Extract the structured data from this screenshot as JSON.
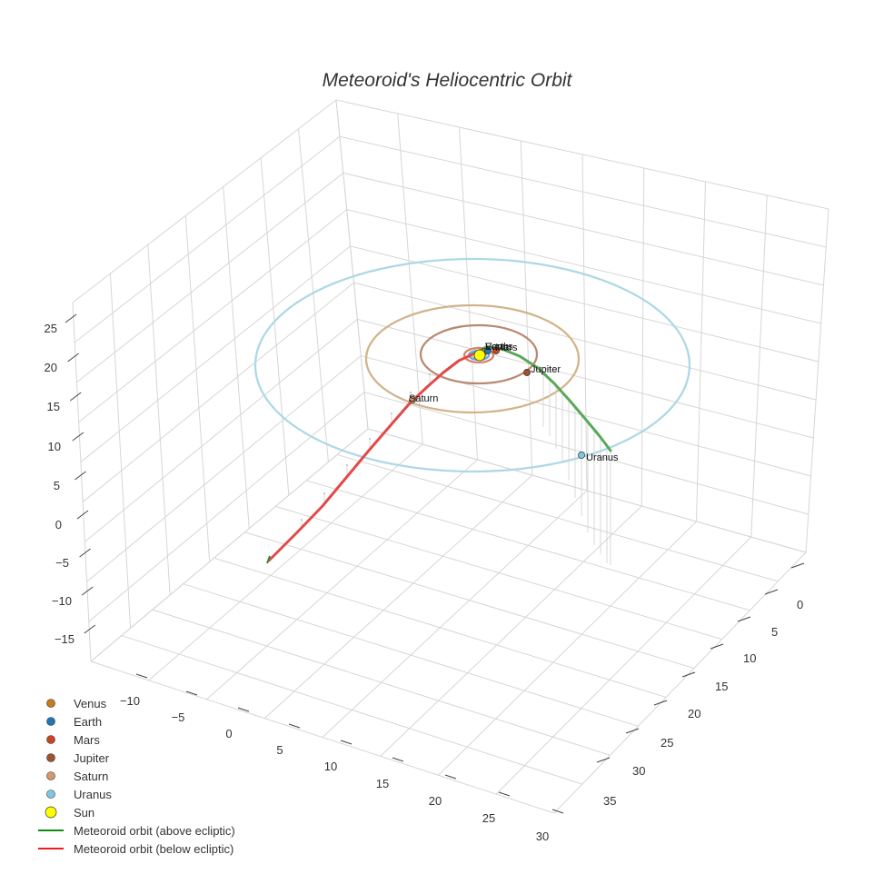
{
  "chart_data": {
    "type": "scatter3d",
    "title": "Meteoroid's Heliocentric Orbit",
    "axes": {
      "x": {
        "ticks": [
          -10,
          -5,
          0,
          5,
          10,
          15,
          20,
          25,
          30
        ],
        "tick_labels": [
          "−10",
          "−5",
          "0",
          "5",
          "10",
          "15",
          "20",
          "25",
          "30"
        ]
      },
      "y": {
        "ticks": [
          0,
          5,
          10,
          15,
          20,
          25,
          30,
          35
        ],
        "tick_labels": [
          "0",
          "5",
          "10",
          "15",
          "20",
          "25",
          "30",
          "35"
        ]
      },
      "z": {
        "ticks": [
          25,
          20,
          15,
          10,
          5,
          0,
          -5,
          -10,
          -15
        ],
        "tick_labels": [
          "25",
          "20",
          "15",
          "10",
          "5",
          "0",
          "−5",
          "−10",
          "−15"
        ]
      },
      "grid": true
    },
    "sun": {
      "name": "Sun",
      "position": [
        0,
        0,
        0
      ],
      "color": "#ffff00"
    },
    "planets": [
      {
        "name": "Venus",
        "orbit_radius_au": 0.72,
        "color": "#c87a1e",
        "orbit_color": "#e3c48a"
      },
      {
        "name": "Earth",
        "orbit_radius_au": 1.0,
        "color": "#1f77b4",
        "orbit_color": "#6fa8dc"
      },
      {
        "name": "Mars",
        "orbit_radius_au": 1.52,
        "color": "#cc4422",
        "orbit_color": "#d9826a"
      },
      {
        "name": "Jupiter",
        "orbit_radius_au": 5.2,
        "color": "#a0522d",
        "orbit_color": "#b98a72"
      },
      {
        "name": "Saturn",
        "orbit_radius_au": 9.58,
        "color": "#d2996b",
        "orbit_color": "#d2b48c"
      },
      {
        "name": "Uranus",
        "orbit_radius_au": 19.2,
        "color": "#7ec8e3",
        "orbit_color": "#add8e6"
      }
    ],
    "meteoroid_orbit": [
      {
        "segment": "above ecliptic",
        "color": "#2e8b2e"
      },
      {
        "segment": "below ecliptic",
        "color": "#e02020"
      }
    ],
    "legend": {
      "position": "bottom-left",
      "entries": [
        {
          "label": "Venus",
          "kind": "marker",
          "color": "#c87a1e"
        },
        {
          "label": "Earth",
          "kind": "marker",
          "color": "#1f77b4"
        },
        {
          "label": "Mars",
          "kind": "marker",
          "color": "#cc4422"
        },
        {
          "label": "Jupiter",
          "kind": "marker",
          "color": "#a0522d"
        },
        {
          "label": "Saturn",
          "kind": "marker",
          "color": "#d2996b"
        },
        {
          "label": "Uranus",
          "kind": "marker",
          "color": "#7ec8e3"
        },
        {
          "label": "Sun",
          "kind": "big-marker",
          "color": "#ffff00"
        },
        {
          "label": "Meteoroid orbit (above ecliptic)",
          "kind": "line",
          "color": "#138a13"
        },
        {
          "label": "Meteoroid orbit (below ecliptic)",
          "kind": "line",
          "color": "#e82020"
        }
      ]
    }
  }
}
